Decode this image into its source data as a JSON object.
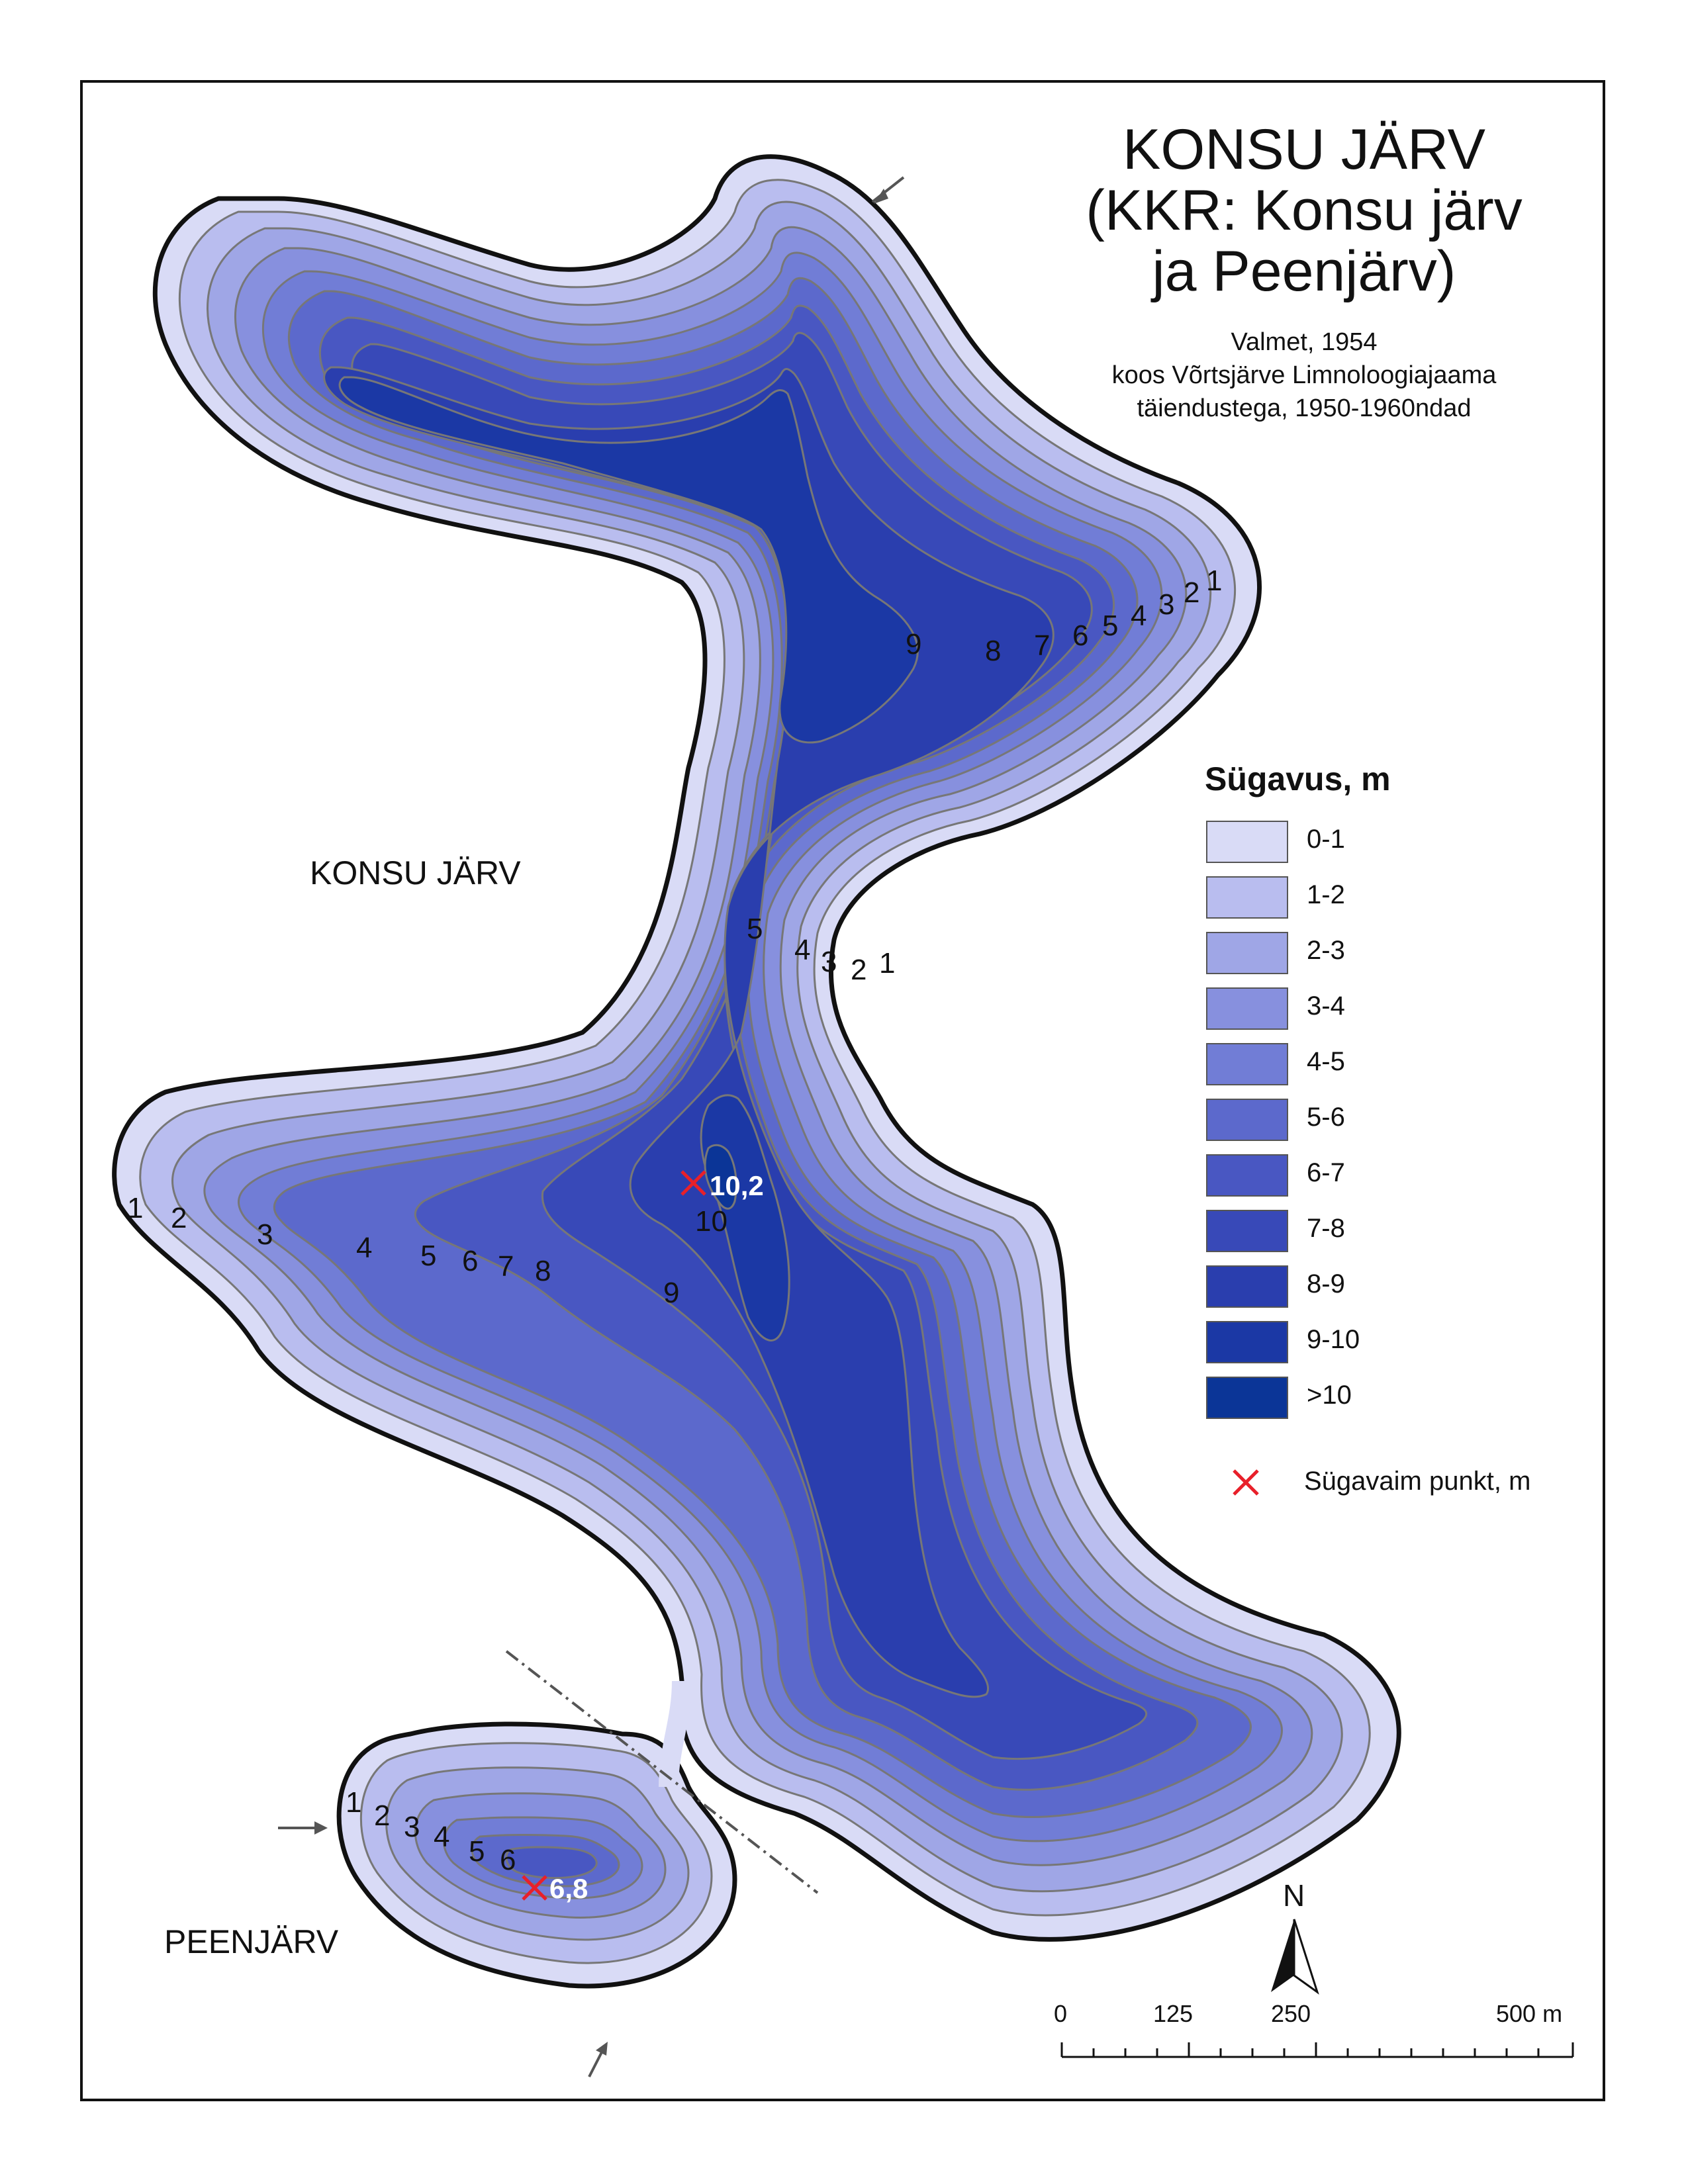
{
  "title": {
    "line1": "KONSU JÄRV",
    "line2": "(KKR: Konsu järv",
    "line3": "ja Peenjärv)"
  },
  "subtitle": {
    "line1": "Valmet, 1954",
    "line2": "koos Võrtsjärve Limnoloogiajaama",
    "line3": "täiendustega, 1950-1960ndad"
  },
  "lake_labels": {
    "konsu": "KONSU JÄRV",
    "peen": "PEENJÄRV"
  },
  "legend": {
    "title": "Sügavus, m",
    "classes": [
      {
        "label": "0-1",
        "color": "#d9dbf6"
      },
      {
        "label": "1-2",
        "color": "#b9bdef"
      },
      {
        "label": "2-3",
        "color": "#9fa6e6"
      },
      {
        "label": "3-4",
        "color": "#8790de"
      },
      {
        "label": "4-5",
        "color": "#717dd6"
      },
      {
        "label": "5-6",
        "color": "#5c69cc"
      },
      {
        "label": "6-7",
        "color": "#4957c2"
      },
      {
        "label": "7-8",
        "color": "#3849b8"
      },
      {
        "label": "8-9",
        "color": "#2a3eae"
      },
      {
        "label": "9-10",
        "color": "#1b38a5"
      },
      {
        "label": ">10",
        "color": "#0b3597"
      }
    ],
    "deepest_label": "Sügavaim punkt, m",
    "deepest_color": "#e8202a"
  },
  "deepest_points": {
    "konsu": "10,2",
    "peen": "6,8"
  },
  "contour_labels": {
    "north": [
      "9",
      "8",
      "7",
      "6",
      "5",
      "4",
      "3",
      "2",
      "1"
    ],
    "neck": [
      "5",
      "4",
      "3",
      "2",
      "1"
    ],
    "south_west": [
      "1",
      "2",
      "3",
      "4",
      "5",
      "6",
      "7",
      "8"
    ],
    "south_center": [
      "10",
      "9"
    ],
    "peen": [
      "1",
      "2",
      "3",
      "4",
      "5",
      "6"
    ]
  },
  "north_arrow": "N",
  "scale_bar": {
    "labels": [
      "0",
      "125",
      "250",
      "500 m"
    ]
  }
}
